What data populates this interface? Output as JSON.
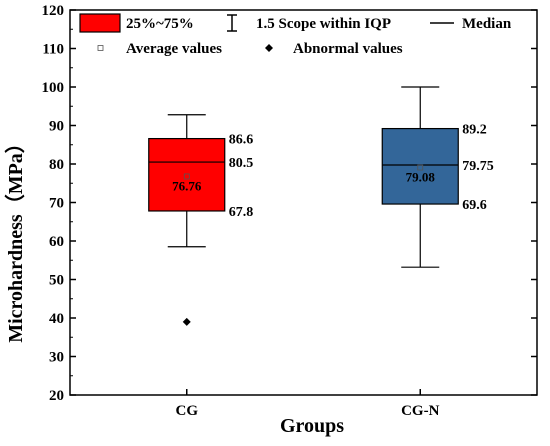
{
  "chart_data": {
    "type": "box",
    "xlabel": "Groups",
    "ylabel": "Microhardness（MPa）",
    "ylim": [
      20,
      120
    ],
    "yticks": [
      20,
      30,
      40,
      50,
      60,
      70,
      80,
      90,
      100,
      110,
      120
    ],
    "categories": [
      "CG",
      "CG-N"
    ],
    "boxes": [
      {
        "category": "CG",
        "q1": 67.8,
        "median": 80.5,
        "q3": 86.6,
        "whisker_low": 58.5,
        "whisker_high": 92.8,
        "mean": 76.76,
        "outliers": [
          39
        ],
        "labels": {
          "q3": "86.6",
          "median": "80.5",
          "q1": "67.8",
          "mean": "76.76"
        },
        "color": "#ff0000"
      },
      {
        "category": "CG-N",
        "q1": 69.6,
        "median": 79.75,
        "q3": 89.2,
        "whisker_low": 53.2,
        "whisker_high": 100,
        "mean": 79.08,
        "outliers": [],
        "labels": {
          "q3": "89.2",
          "median": "79.75",
          "q1": "69.6",
          "mean": "79.08"
        },
        "color": "#336699"
      }
    ],
    "legend": {
      "position": "top",
      "items": [
        {
          "key": "box",
          "label": "25%~75%"
        },
        {
          "key": "whisker",
          "label": "1.5 Scope within IQP"
        },
        {
          "key": "median",
          "label": "Median"
        },
        {
          "key": "mean",
          "label": "Average values"
        },
        {
          "key": "outlier",
          "label": "Abnormal values"
        }
      ]
    }
  }
}
